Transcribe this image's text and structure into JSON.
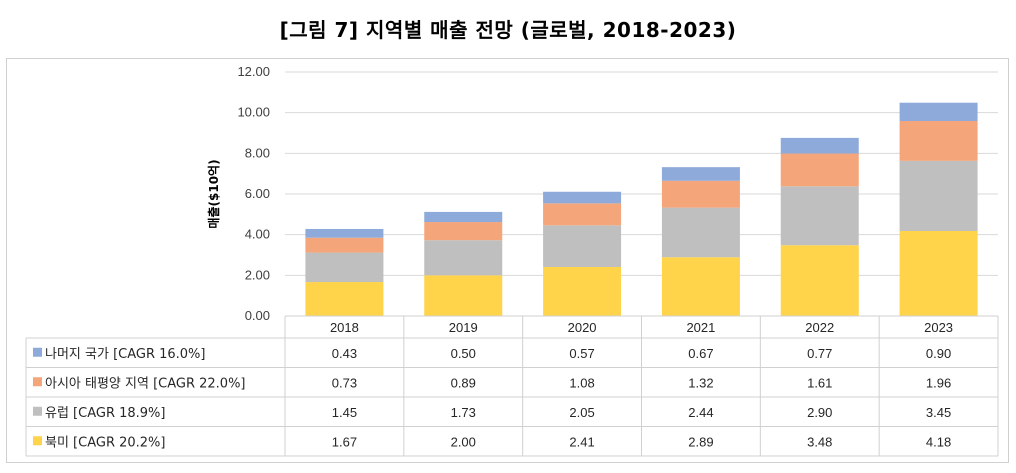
{
  "title": "[그림 7] 지역별 매출 전망 (글로벌, 2018-2023)",
  "chart_data": {
    "type": "bar",
    "stacked": true,
    "title": "[그림 7] 지역별 매출 전망 (글로벌, 2018-2023)",
    "ylabel": "매출($10억)",
    "ylim": [
      0,
      12
    ],
    "yticks": [
      "0.00",
      "2.00",
      "4.00",
      "6.00",
      "8.00",
      "10.00",
      "12.00"
    ],
    "grid": true,
    "legend": "data-table",
    "categories": [
      "2018",
      "2019",
      "2020",
      "2021",
      "2022",
      "2023"
    ],
    "series": [
      {
        "name": "북미 [CAGR 20.2%]",
        "color": "#ffd44a",
        "values": [
          1.67,
          2.0,
          2.41,
          2.89,
          3.48,
          4.18
        ],
        "labels": [
          "1.67",
          "2.00",
          "2.41",
          "2.89",
          "3.48",
          "4.18"
        ]
      },
      {
        "name": "유럽 [CAGR 18.9%]",
        "color": "#bfbfbf",
        "values": [
          1.45,
          1.73,
          2.05,
          2.44,
          2.9,
          3.45
        ],
        "labels": [
          "1.45",
          "1.73",
          "2.05",
          "2.44",
          "2.90",
          "3.45"
        ]
      },
      {
        "name": "아시아 태평양 지역 [CAGR 22.0%]",
        "color": "#f4a57a",
        "values": [
          0.73,
          0.89,
          1.08,
          1.32,
          1.61,
          1.96
        ],
        "labels": [
          "0.73",
          "0.89",
          "1.08",
          "1.32",
          "1.61",
          "1.96"
        ]
      },
      {
        "name": "나머지 국가 [CAGR 16.0%]",
        "color": "#8eaadb",
        "values": [
          0.43,
          0.5,
          0.57,
          0.67,
          0.77,
          0.9
        ],
        "labels": [
          "0.43",
          "0.50",
          "0.57",
          "0.67",
          "0.77",
          "0.90"
        ]
      }
    ]
  }
}
